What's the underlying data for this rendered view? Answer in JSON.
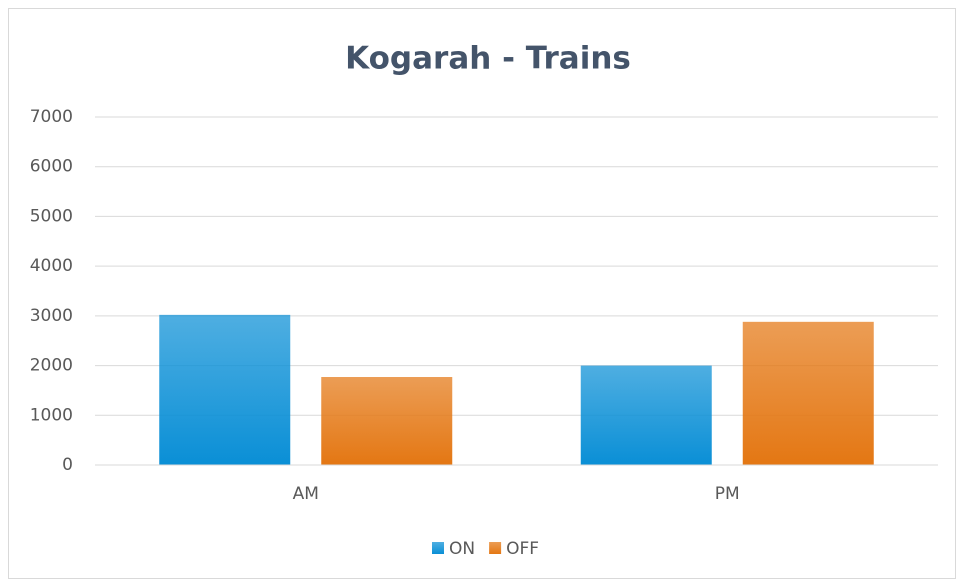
{
  "chart_data": {
    "type": "bar",
    "title": "Kogarah - Trains",
    "categories": [
      "AM",
      "PM"
    ],
    "series": [
      {
        "name": "ON",
        "color": "#0a8fd6",
        "values": [
          3020,
          2000
        ]
      },
      {
        "name": "OFF",
        "color": "#e47713",
        "values": [
          1770,
          2880
        ]
      }
    ],
    "ylim": [
      0,
      7000
    ],
    "yticks": [
      0,
      1000,
      2000,
      3000,
      4000,
      5000,
      6000,
      7000
    ],
    "grid": true,
    "legend": "bottom"
  }
}
